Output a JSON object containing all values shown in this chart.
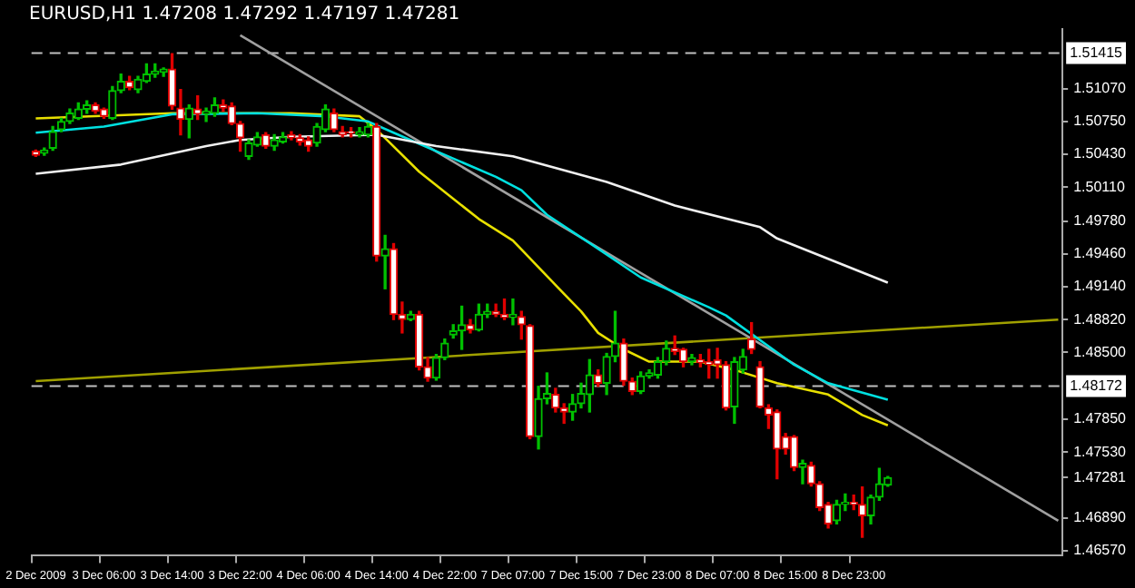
{
  "chart_data": {
    "type": "candlestick",
    "title": "EURUSD,H1 1.47208 1.47292 1.47197 1.47281",
    "categories": [
      "2 Dec 2009",
      null,
      null,
      null,
      null,
      null,
      null,
      null,
      "3 Dec 06:00",
      null,
      null,
      null,
      null,
      null,
      null,
      null,
      "3 Dec 14:00",
      null,
      null,
      null,
      null,
      null,
      null,
      null,
      "3 Dec 22:00",
      null,
      null,
      null,
      null,
      null,
      null,
      null,
      "4 Dec 06:00",
      null,
      null,
      null,
      null,
      null,
      null,
      null,
      "4 Dec 14:00",
      null,
      null,
      null,
      null,
      null,
      null,
      null,
      "4 Dec 22:00",
      null,
      null,
      null,
      null,
      null,
      null,
      null,
      "7 Dec 07:00",
      null,
      null,
      null,
      null,
      null,
      null,
      null,
      "7 Dec 15:00",
      null,
      null,
      null,
      null,
      null,
      null,
      null,
      "7 Dec 23:00",
      null,
      null,
      null,
      null,
      null,
      null,
      null,
      "8 Dec 07:00",
      null,
      null,
      null,
      null,
      null,
      null,
      null,
      "8 Dec 15:00",
      null,
      null,
      null,
      null,
      null,
      null,
      null,
      "8 Dec 23:00",
      null,
      null,
      null,
      null,
      null,
      null,
      null,
      null,
      null,
      null,
      null,
      null,
      null,
      null,
      null,
      null,
      null,
      null,
      null,
      null,
      null,
      null,
      null,
      null
    ],
    "ohlc": [
      [
        1.5046,
        1.5047,
        1.5041,
        1.5042
      ],
      [
        1.5044,
        1.5049,
        1.5042,
        1.5047
      ],
      [
        1.5049,
        1.507,
        1.5047,
        1.5065
      ],
      [
        1.5067,
        1.5078,
        1.5065,
        1.5075
      ],
      [
        1.5075,
        1.5087,
        1.5073,
        1.5083
      ],
      [
        1.5078,
        1.5093,
        1.5077,
        1.5087
      ],
      [
        1.5087,
        1.5095,
        1.5083,
        1.5091
      ],
      [
        1.5091,
        1.5093,
        1.5083,
        1.5085
      ],
      [
        1.5087,
        1.5088,
        1.5078,
        1.508
      ],
      [
        1.5078,
        1.5109,
        1.5077,
        1.5105
      ],
      [
        1.5105,
        1.5121,
        1.5103,
        1.5114
      ],
      [
        1.5114,
        1.5119,
        1.5106,
        1.5108
      ],
      [
        1.5106,
        1.5119,
        1.5103,
        1.5116
      ],
      [
        1.5114,
        1.5131,
        1.5113,
        1.5121
      ],
      [
        1.5121,
        1.5131,
        1.5118,
        1.5124
      ],
      [
        1.5123,
        1.5127,
        1.5119,
        1.5126
      ],
      [
        1.5126,
        1.5141,
        1.5087,
        1.509
      ],
      [
        1.5088,
        1.5106,
        1.5062,
        1.5077
      ],
      [
        1.5077,
        1.5091,
        1.5059,
        1.5088
      ],
      [
        1.5087,
        1.51,
        1.5077,
        1.5082
      ],
      [
        1.5082,
        1.5088,
        1.5075,
        1.5085
      ],
      [
        1.5083,
        1.5098,
        1.508,
        1.5091
      ],
      [
        1.5091,
        1.5096,
        1.5085,
        1.5088
      ],
      [
        1.509,
        1.5093,
        1.5072,
        1.5073
      ],
      [
        1.5073,
        1.5075,
        1.5046,
        1.5059
      ],
      [
        1.5041,
        1.5057,
        1.5038,
        1.5054
      ],
      [
        1.5052,
        1.5064,
        1.5051,
        1.506
      ],
      [
        1.5062,
        1.5064,
        1.5049,
        1.5051
      ],
      [
        1.5051,
        1.5062,
        1.5047,
        1.5057
      ],
      [
        1.5055,
        1.5064,
        1.5054,
        1.506
      ],
      [
        1.5062,
        1.5065,
        1.5057,
        1.5059
      ],
      [
        1.5059,
        1.5062,
        1.5052,
        1.5055
      ],
      [
        1.5057,
        1.506,
        1.5046,
        1.5051
      ],
      [
        1.5054,
        1.5073,
        1.5051,
        1.507
      ],
      [
        1.5067,
        1.5091,
        1.5065,
        1.5087
      ],
      [
        1.5083,
        1.5087,
        1.5065,
        1.5067
      ],
      [
        1.5065,
        1.507,
        1.506,
        1.5062
      ],
      [
        1.5065,
        1.5069,
        1.506,
        1.5064
      ],
      [
        1.5062,
        1.5069,
        1.506,
        1.5065
      ],
      [
        1.5062,
        1.5073,
        1.506,
        1.507
      ],
      [
        1.507,
        1.5073,
        1.4939,
        1.4944
      ],
      [
        1.4944,
        1.4964,
        1.4912,
        1.4951
      ],
      [
        1.4951,
        1.4956,
        1.4882,
        1.4887
      ],
      [
        1.4887,
        1.4899,
        1.4869,
        1.4882
      ],
      [
        1.4882,
        1.489,
        1.4881,
        1.4887
      ],
      [
        1.4887,
        1.489,
        1.4833,
        1.4836
      ],
      [
        1.4836,
        1.4845,
        1.4822,
        1.4825
      ],
      [
        1.4825,
        1.4848,
        1.4823,
        1.4845
      ],
      [
        1.4845,
        1.4863,
        1.4843,
        1.4859
      ],
      [
        1.4867,
        1.4877,
        1.4864,
        1.4871
      ],
      [
        1.4871,
        1.4895,
        1.4853,
        1.4877
      ],
      [
        1.4877,
        1.4882,
        1.4869,
        1.4872
      ],
      [
        1.4872,
        1.4897,
        1.4871,
        1.4887
      ],
      [
        1.4887,
        1.4897,
        1.4884,
        1.489
      ],
      [
        1.489,
        1.4897,
        1.4885,
        1.4887
      ],
      [
        1.4887,
        1.4902,
        1.4882,
        1.4884
      ],
      [
        1.4884,
        1.4902,
        1.4877,
        1.4887
      ],
      [
        1.4885,
        1.489,
        1.4863,
        1.4877
      ],
      [
        1.4876,
        1.4877,
        1.4766,
        1.4768
      ],
      [
        1.4768,
        1.4817,
        1.4756,
        1.4805
      ],
      [
        1.4805,
        1.483,
        1.48,
        1.481
      ],
      [
        1.4809,
        1.4815,
        1.4792,
        1.4796
      ],
      [
        1.4796,
        1.48,
        1.4781,
        1.4792
      ],
      [
        1.4792,
        1.4809,
        1.4784,
        1.48
      ],
      [
        1.48,
        1.482,
        1.4796,
        1.481
      ],
      [
        1.4809,
        1.4843,
        1.4792,
        1.4828
      ],
      [
        1.4828,
        1.4833,
        1.4817,
        1.482
      ],
      [
        1.482,
        1.4849,
        1.4809,
        1.4846
      ],
      [
        1.4846,
        1.489,
        1.4841,
        1.4859
      ],
      [
        1.4859,
        1.4863,
        1.4818,
        1.4822
      ],
      [
        1.4822,
        1.4825,
        1.4809,
        1.4812
      ],
      [
        1.4812,
        1.4831,
        1.481,
        1.4827
      ],
      [
        1.4827,
        1.4833,
        1.4825,
        1.483
      ],
      [
        1.4828,
        1.4845,
        1.4825,
        1.4841
      ],
      [
        1.4841,
        1.4861,
        1.4838,
        1.4854
      ],
      [
        1.4854,
        1.4866,
        1.4848,
        1.4851
      ],
      [
        1.4853,
        1.4854,
        1.4836,
        1.4841
      ],
      [
        1.4841,
        1.4848,
        1.4838,
        1.4845
      ],
      [
        1.4843,
        1.4848,
        1.4836,
        1.484
      ],
      [
        1.4841,
        1.4853,
        1.4825,
        1.4838
      ],
      [
        1.4843,
        1.4854,
        1.4825,
        1.4838
      ],
      [
        1.4838,
        1.4841,
        1.4794,
        1.4796
      ],
      [
        1.4797,
        1.4845,
        1.4781,
        1.4841
      ],
      [
        1.4833,
        1.4853,
        1.483,
        1.4846
      ],
      [
        1.4863,
        1.4879,
        1.4849,
        1.4853
      ],
      [
        1.4836,
        1.4841,
        1.4796,
        1.4797
      ],
      [
        1.4796,
        1.4799,
        1.4776,
        1.4789
      ],
      [
        1.4792,
        1.4794,
        1.4727,
        1.4756
      ],
      [
        1.4768,
        1.4771,
        1.4751,
        1.4756
      ],
      [
        1.4768,
        1.4769,
        1.4735,
        1.4738
      ],
      [
        1.4738,
        1.4745,
        1.4722,
        1.4742
      ],
      [
        1.474,
        1.4743,
        1.472,
        1.4722
      ],
      [
        1.4722,
        1.4724,
        1.4696,
        1.4699
      ],
      [
        1.4702,
        1.4704,
        1.4679,
        1.4683
      ],
      [
        1.4686,
        1.4706,
        1.4683,
        1.4702
      ],
      [
        1.4702,
        1.4712,
        1.4696,
        1.4704
      ],
      [
        1.4704,
        1.4711,
        1.4697,
        1.4702
      ],
      [
        1.4702,
        1.4719,
        1.467,
        1.4691
      ],
      [
        1.4691,
        1.4711,
        1.4683,
        1.4709
      ],
      [
        1.4709,
        1.4737,
        1.4706,
        1.4722
      ],
      [
        1.47208,
        1.47292,
        1.47197,
        1.47281
      ],
      null,
      null,
      null,
      null,
      null,
      null,
      null,
      null,
      null,
      null,
      null,
      null,
      null,
      null,
      null,
      null,
      null,
      null,
      null,
      null
    ],
    "series": [
      {
        "type": "line",
        "color": "#f0f0f0",
        "values": [
          1.5024,
          null,
          null,
          null,
          null,
          null,
          null,
          null,
          null,
          null,
          1.5033,
          null,
          null,
          null,
          null,
          null,
          null,
          null,
          null,
          null,
          1.5051,
          null,
          null,
          null,
          1.5057,
          null,
          null,
          null,
          null,
          null,
          1.506,
          null,
          null,
          null,
          null,
          null,
          null,
          null,
          null,
          null,
          1.5062,
          null,
          null,
          null,
          null,
          null,
          null,
          1.5051,
          null,
          null,
          null,
          null,
          null,
          null,
          null,
          null,
          1.5041,
          null,
          null,
          null,
          null,
          null,
          null,
          null,
          null,
          null,
          null,
          1.5016,
          null,
          null,
          null,
          null,
          null,
          null,
          null,
          1.4993,
          null,
          null,
          null,
          null,
          null,
          null,
          null,
          null,
          null,
          1.4972,
          null,
          1.4961,
          null,
          null,
          null,
          null,
          null,
          null,
          null,
          null,
          null,
          null,
          null,
          null,
          1.4918,
          null,
          null,
          null,
          null,
          null,
          null,
          null,
          null,
          null,
          null,
          null,
          null,
          null,
          null,
          null,
          null,
          null,
          null,
          null,
          null
        ]
      },
      {
        "type": "line",
        "color": "#00e0e0",
        "values": [
          1.5064,
          null,
          null,
          null,
          null,
          null,
          null,
          null,
          1.507,
          null,
          null,
          null,
          null,
          null,
          null,
          null,
          1.5082,
          null,
          null,
          null,
          null,
          null,
          null,
          null,
          null,
          null,
          1.5083,
          null,
          null,
          null,
          null,
          null,
          null,
          null,
          1.508,
          null,
          null,
          null,
          null,
          1.5075,
          null,
          null,
          1.5064,
          null,
          null,
          null,
          null,
          1.5046,
          null,
          null,
          null,
          null,
          null,
          null,
          1.5021,
          null,
          null,
          1.5008,
          null,
          null,
          1.4984,
          null,
          null,
          null,
          null,
          null,
          1.4951,
          null,
          null,
          null,
          null,
          1.4923,
          null,
          null,
          null,
          null,
          null,
          null,
          null,
          1.4894,
          null,
          1.4886,
          null,
          null,
          null,
          null,
          null,
          null,
          null,
          1.4838,
          null,
          null,
          null,
          1.482,
          null,
          null,
          null,
          null,
          null,
          null,
          1.4804,
          null,
          null,
          null,
          null,
          null,
          null,
          null,
          null,
          null,
          null,
          null,
          null,
          null,
          null,
          null,
          null,
          null,
          null,
          null,
          null
        ]
      },
      {
        "type": "line",
        "color": "#e8e000",
        "values": [
          1.5078,
          null,
          null,
          null,
          null,
          null,
          null,
          null,
          null,
          null,
          null,
          null,
          null,
          null,
          null,
          null,
          1.5083,
          null,
          null,
          null,
          null,
          null,
          null,
          null,
          null,
          null,
          null,
          null,
          null,
          null,
          1.5083,
          null,
          null,
          null,
          null,
          null,
          null,
          null,
          1.508,
          null,
          1.5067,
          null,
          null,
          null,
          null,
          1.5026,
          null,
          null,
          null,
          null,
          null,
          null,
          1.498,
          null,
          null,
          null,
          1.4959,
          null,
          null,
          null,
          null,
          null,
          1.4907,
          null,
          1.489,
          null,
          1.4869,
          null,
          null,
          1.4853,
          null,
          null,
          1.4841,
          null,
          null,
          null,
          null,
          null,
          1.4841,
          null,
          null,
          null,
          1.4833,
          null,
          null,
          null,
          null,
          1.482,
          null,
          null,
          null,
          null,
          null,
          1.4809,
          null,
          null,
          null,
          1.4789,
          null,
          null,
          1.4779,
          null,
          null,
          null,
          null,
          null,
          null,
          null,
          null,
          null,
          null,
          null,
          null,
          null,
          null,
          null,
          null,
          null,
          null,
          null,
          null
        ]
      },
      {
        "type": "line",
        "color": "#a0a0a0",
        "values": [
          null,
          null,
          null,
          null,
          null,
          null,
          null,
          null,
          null,
          null,
          null,
          null,
          null,
          null,
          null,
          null,
          null,
          null,
          null,
          null,
          null,
          null,
          null,
          null,
          1.5159,
          null,
          null,
          null,
          null,
          null,
          null,
          null,
          null,
          null,
          null,
          null,
          null,
          null,
          null,
          null,
          null,
          null,
          null,
          null,
          null,
          null,
          null,
          null,
          null,
          null,
          null,
          null,
          null,
          null,
          null,
          null,
          null,
          null,
          null,
          null,
          null,
          null,
          null,
          null,
          null,
          null,
          null,
          null,
          null,
          null,
          null,
          null,
          null,
          null,
          null,
          null,
          null,
          null,
          null,
          null,
          null,
          null,
          null,
          null,
          null,
          null,
          null,
          null,
          null,
          null,
          null,
          null,
          null,
          null,
          null,
          null,
          null,
          null,
          null,
          null,
          null,
          null,
          null,
          null,
          null,
          null,
          null,
          null,
          null,
          null,
          null,
          null,
          null,
          null,
          null,
          null,
          null,
          null,
          null,
          null,
          1.4686
        ]
      },
      {
        "type": "line",
        "color": "#a0a000",
        "values": [
          1.4822,
          null,
          null,
          null,
          null,
          null,
          null,
          null,
          null,
          null,
          null,
          null,
          null,
          null,
          null,
          null,
          null,
          null,
          null,
          null,
          null,
          null,
          null,
          null,
          null,
          null,
          null,
          null,
          null,
          null,
          null,
          null,
          null,
          null,
          null,
          null,
          null,
          null,
          null,
          null,
          null,
          null,
          null,
          null,
          null,
          null,
          null,
          null,
          null,
          null,
          null,
          null,
          null,
          null,
          null,
          null,
          null,
          null,
          null,
          null,
          null,
          null,
          null,
          null,
          null,
          null,
          null,
          null,
          null,
          null,
          null,
          null,
          null,
          null,
          null,
          null,
          null,
          null,
          null,
          null,
          null,
          null,
          null,
          null,
          null,
          null,
          null,
          null,
          null,
          null,
          null,
          null,
          null,
          null,
          null,
          null,
          null,
          null,
          null,
          null,
          null,
          null,
          null,
          null,
          null,
          null,
          null,
          null,
          null,
          null,
          null,
          null,
          null,
          null,
          null,
          null,
          null,
          null,
          null,
          null,
          1.4882
        ]
      }
    ],
    "ylim": [
      1.4652,
      1.5165
    ],
    "yticks": [
      {
        "value": 1.5107,
        "label": "1.51070"
      },
      {
        "value": 1.5075,
        "label": "1.50750"
      },
      {
        "value": 1.5043,
        "label": "1.50430"
      },
      {
        "value": 1.5011,
        "label": "1.50110"
      },
      {
        "value": 1.4978,
        "label": "1.49780"
      },
      {
        "value": 1.4946,
        "label": "1.49460"
      },
      {
        "value": 1.4914,
        "label": "1.49140"
      },
      {
        "value": 1.4882,
        "label": "1.48820"
      },
      {
        "value": 1.485,
        "label": "1.48500"
      },
      {
        "value": 1.4785,
        "label": "1.47850"
      },
      {
        "value": 1.4753,
        "label": "1.47530"
      },
      {
        "value": 1.47281,
        "label": "1.47281"
      },
      {
        "value": 1.4689,
        "label": "1.46890"
      },
      {
        "value": 1.4657,
        "label": "1.46570"
      }
    ],
    "ref_lines": [
      {
        "axis": "y",
        "value": 1.51415,
        "label": "1.51415",
        "color": "#c0c0c0",
        "line_style": "dashed"
      },
      {
        "axis": "y",
        "value": 1.48172,
        "label": "1.48172",
        "color": "#c0c0c0",
        "line_style": "dashed"
      }
    ]
  }
}
